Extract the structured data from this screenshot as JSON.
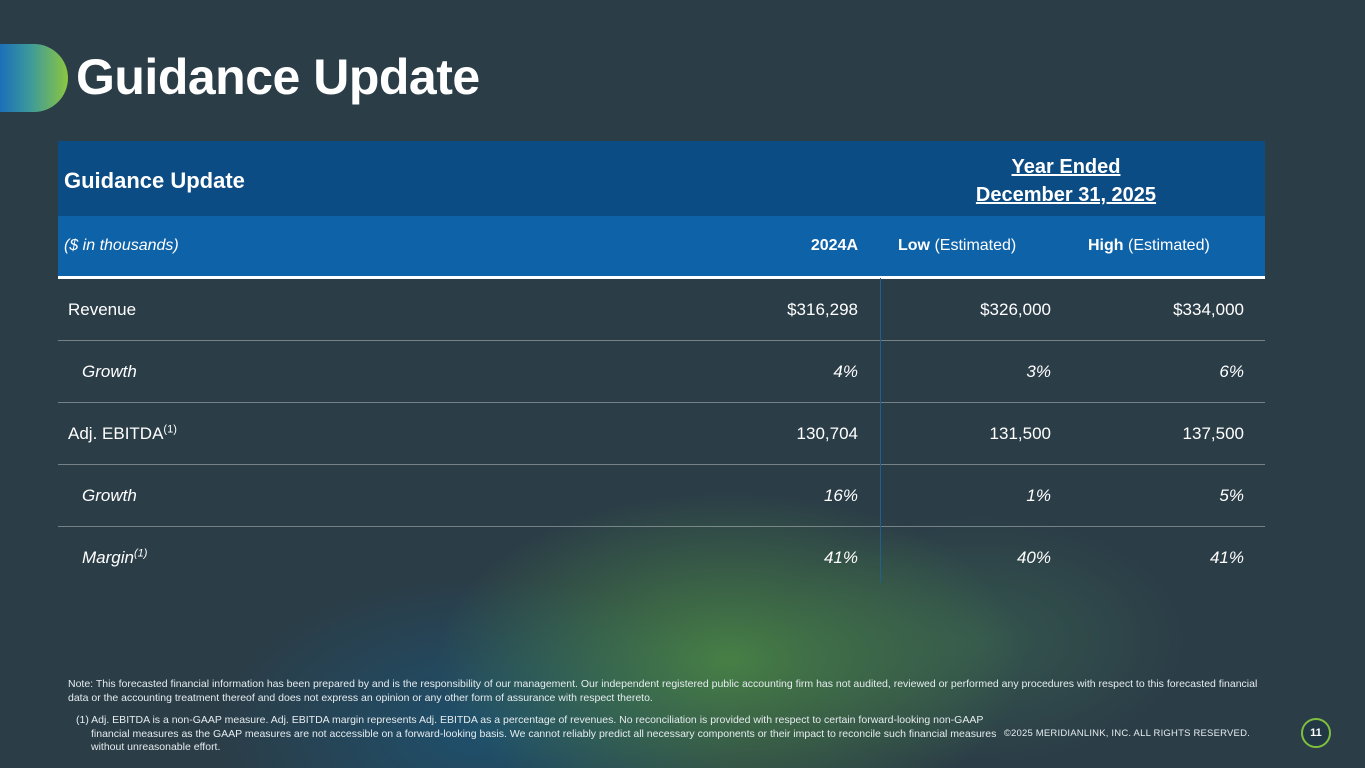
{
  "slide": {
    "title": "Guidance Update",
    "page_number": "11",
    "copyright": "©2025 MERIDIANLINK, INC. ALL RIGHTS RESERVED."
  },
  "table": {
    "title": "Guidance Update",
    "period_line1": "Year Ended",
    "period_line2": "December 31, 2025",
    "units": "($ in thousands)",
    "col_actual": "2024A",
    "col_low_bold": "Low",
    "col_low_rest": " (Estimated)",
    "col_high_bold": "High",
    "col_high_rest": " (Estimated)",
    "rows": [
      {
        "label": "Revenue",
        "sup": "",
        "actual": "$316,298",
        "low": "$326,000",
        "high": "$334,000"
      },
      {
        "label": "Growth",
        "sup": "",
        "actual": "4%",
        "low": "3%",
        "high": "6%"
      },
      {
        "label": "Adj. EBITDA",
        "sup": "(1)",
        "actual": "130,704",
        "low": "131,500",
        "high": "137,500"
      },
      {
        "label": "Growth",
        "sup": "",
        "actual": "16%",
        "low": "1%",
        "high": "5%"
      },
      {
        "label": "Margin",
        "sup": "(1)",
        "actual": "41%",
        "low": "40%",
        "high": "41%"
      }
    ]
  },
  "notes": {
    "note": "Note: This forecasted financial information has been prepared by and is the responsibility of our management. Our independent registered public accounting firm has not audited, reviewed or performed any procedures with respect to this forecasted financial data or the accounting treatment thereof and does not express an opinion or any other form of assurance with respect thereto.",
    "footnote_1": "(1)  Adj. EBITDA is a non-GAAP measure. Adj. EBITDA margin represents Adj. EBITDA as a percentage of revenues. No reconciliation is provided with respect to certain forward-looking non-GAAP financial measures as the GAAP measures are not accessible on a forward-looking basis. We cannot reliably predict all necessary components or their impact to reconcile such financial measures without unreasonable effort."
  }
}
